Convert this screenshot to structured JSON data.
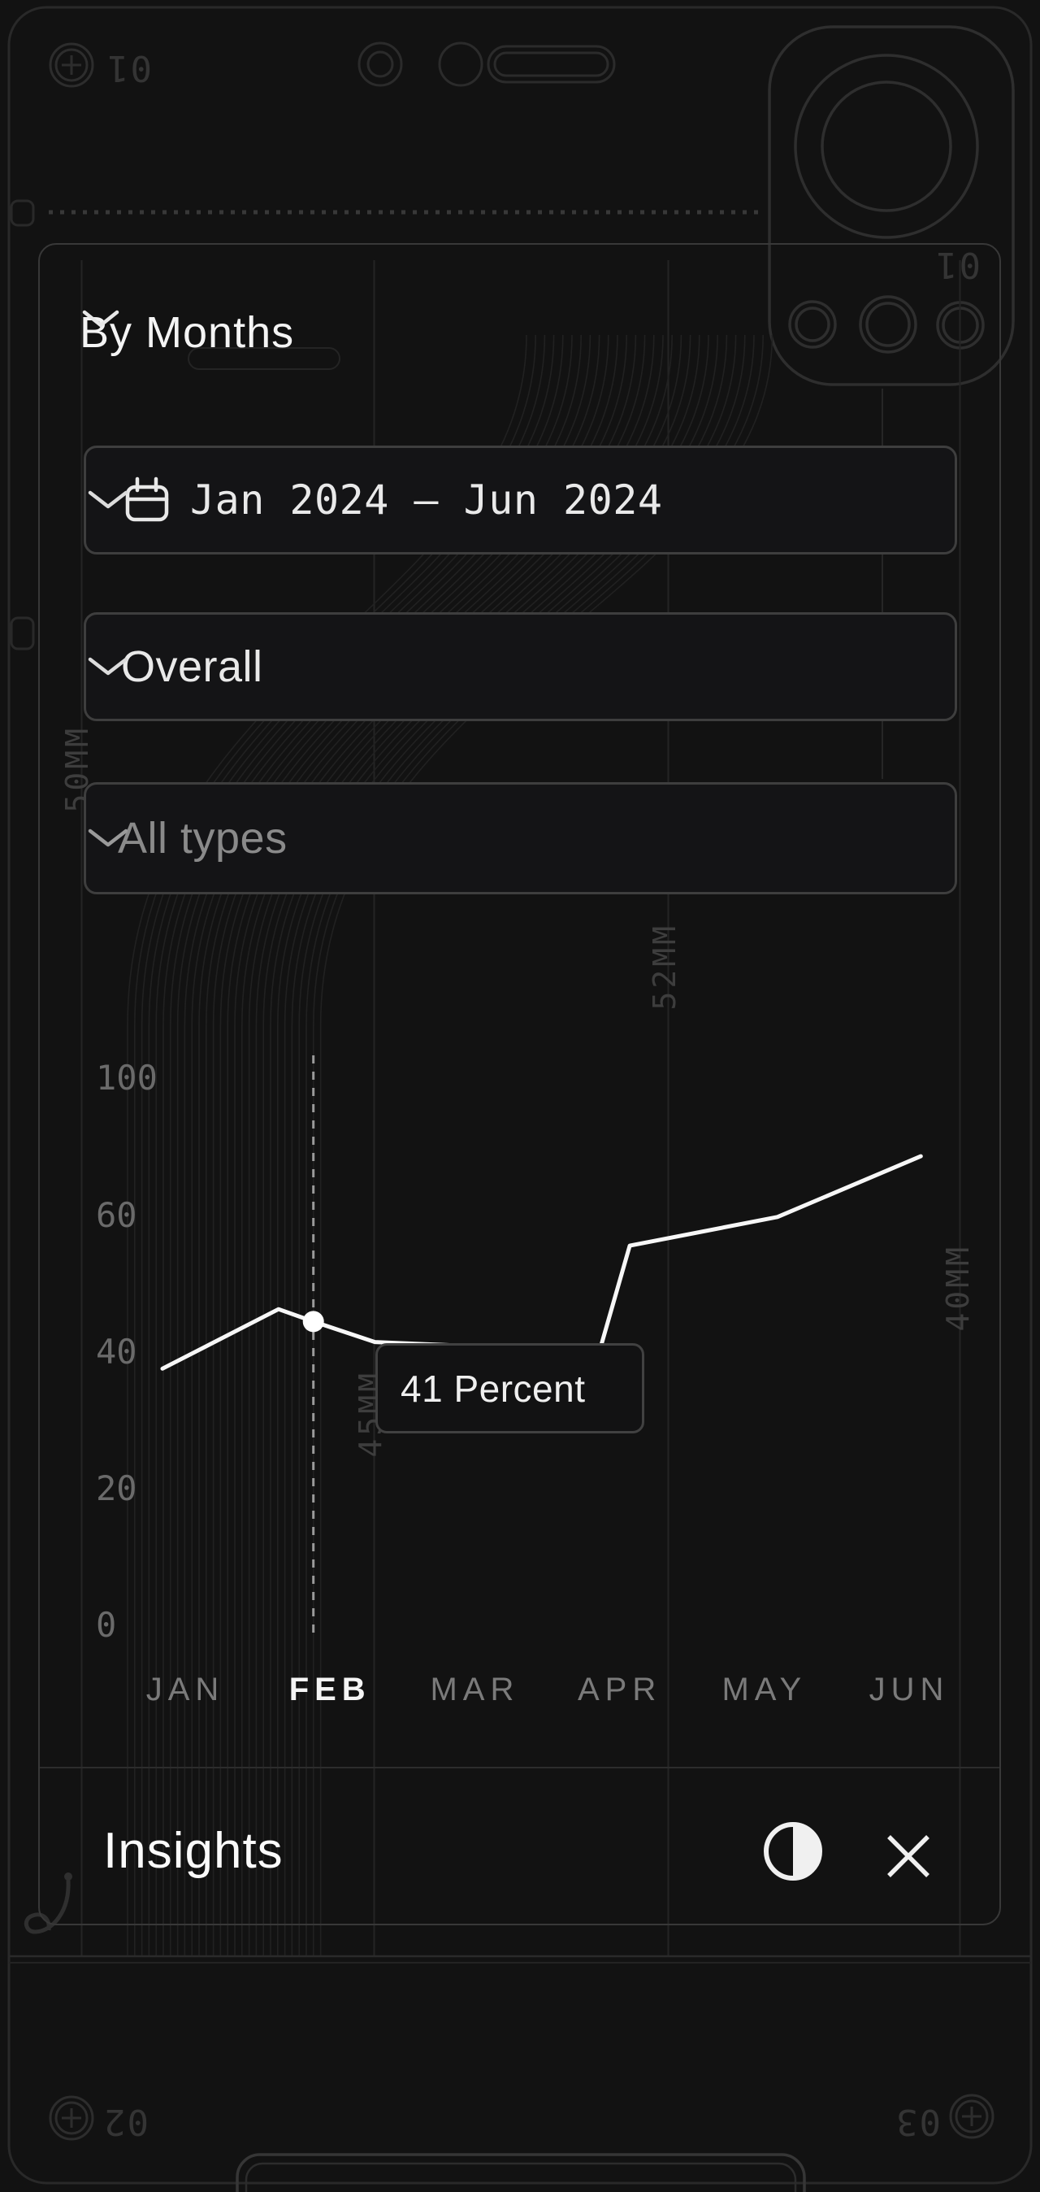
{
  "view_selector": {
    "label": "By Months"
  },
  "filters": {
    "date_range": {
      "value": "Jan 2024 – Jun 2024"
    },
    "category": {
      "value": "Overall"
    },
    "type": {
      "placeholder": "All types"
    }
  },
  "chart_data": {
    "type": "line",
    "categories": [
      "JAN",
      "FEB",
      "MAR",
      "APR",
      "MAY",
      "JUN"
    ],
    "values": [
      38,
      41,
      41,
      56,
      60,
      77
    ],
    "y_ticks": [
      100,
      60,
      40,
      20,
      0
    ],
    "ylim": [
      0,
      100
    ],
    "xlabel": "",
    "ylabel": "",
    "legend": "none",
    "grid": "faint-vertical-columns",
    "highlight": {
      "category": "FEB",
      "tooltip": "41 Percent",
      "value": 41
    },
    "render_points_month_value": [
      [
        -0.157,
        37.7
      ],
      [
        0.644,
        46.4
      ],
      [
        0.885,
        44.6
      ],
      [
        1.31,
        41.6
      ],
      [
        2.86,
        40.2
      ],
      [
        3.07,
        55.7
      ],
      [
        4.09,
        59.9
      ],
      [
        5.08,
        77.5
      ]
    ],
    "highlight_point_index": 2
  },
  "insights": {
    "title": "Insights"
  },
  "decor": {
    "tag_01": "01",
    "tag_02": "02",
    "tag_03": "03",
    "mm_50": "50MM",
    "mm_45": "45MM",
    "mm_52": "52MM",
    "mm_40": "40MM"
  },
  "colors": {
    "background": "#121212",
    "panel_border": "#383838",
    "dropdown_border": "#3e3e3e",
    "accent_text": "#f4f4f4",
    "muted_text": "#7a7a7a",
    "placeholder_text": "#8a8a8a",
    "chart_line": "#f7f7f7",
    "crosshair": "#9a9a9a",
    "decor_stroke": "#2b2b2b"
  }
}
